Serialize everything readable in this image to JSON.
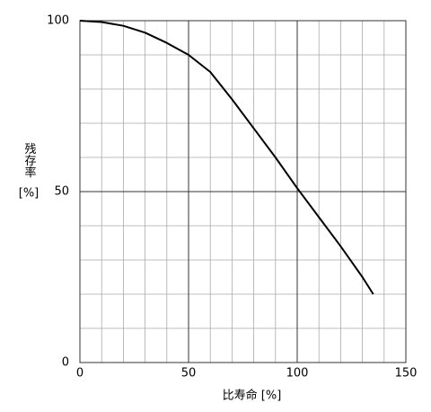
{
  "chart_data": {
    "type": "line",
    "x_label": "比寿命 [%]",
    "y_label": "残存率",
    "y_label_unit": "[%]",
    "x": [
      0,
      10,
      20,
      30,
      40,
      50,
      60,
      70,
      80,
      90,
      100,
      110,
      120,
      130,
      135
    ],
    "series": [
      {
        "color": "#000000",
        "values": [
          100,
          99.6,
          98.5,
          96.5,
          93.5,
          90,
          85,
          77,
          68.5,
          60,
          51,
          42.5,
          34,
          25,
          20
        ]
      }
    ],
    "xlim": [
      0,
      150
    ],
    "xticks": [
      0,
      50,
      100,
      150
    ],
    "ylim": [
      0,
      100
    ],
    "yticks": [
      0,
      50,
      100
    ],
    "grid": true
  }
}
